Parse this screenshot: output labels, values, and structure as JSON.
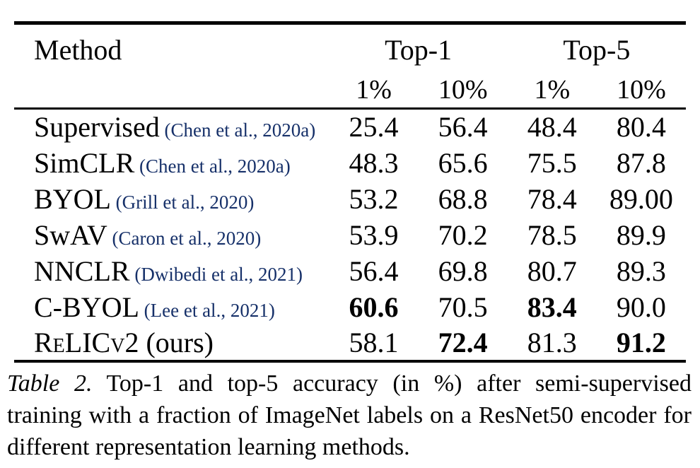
{
  "colors": {
    "text": "#000000",
    "citation_link": "#163069",
    "background": "#ffffff"
  },
  "table": {
    "method_header": "Method",
    "groups": [
      "Top-1",
      "Top-5"
    ],
    "subheaders": [
      "1%",
      "10%",
      "1%",
      "10%"
    ],
    "rows": [
      {
        "method": "Supervised",
        "citation": "(Chen et al., 2020a)",
        "note": "",
        "smallcaps": false,
        "values": [
          {
            "text": "25.4",
            "bold": false
          },
          {
            "text": "56.4",
            "bold": false
          },
          {
            "text": "48.4",
            "bold": false
          },
          {
            "text": "80.4",
            "bold": false
          }
        ]
      },
      {
        "method": "SimCLR",
        "citation": "(Chen et al., 2020a)",
        "note": "",
        "smallcaps": false,
        "values": [
          {
            "text": "48.3",
            "bold": false
          },
          {
            "text": "65.6",
            "bold": false
          },
          {
            "text": "75.5",
            "bold": false
          },
          {
            "text": "87.8",
            "bold": false
          }
        ]
      },
      {
        "method": "BYOL",
        "citation": "(Grill et al., 2020)",
        "note": "",
        "smallcaps": false,
        "values": [
          {
            "text": "53.2",
            "bold": false
          },
          {
            "text": "68.8",
            "bold": false
          },
          {
            "text": "78.4",
            "bold": false
          },
          {
            "text": "89.00",
            "bold": false
          }
        ]
      },
      {
        "method": "SwAV",
        "citation": "(Caron et al., 2020)",
        "note": "",
        "smallcaps": false,
        "values": [
          {
            "text": "53.9",
            "bold": false
          },
          {
            "text": "70.2",
            "bold": false
          },
          {
            "text": "78.5",
            "bold": false
          },
          {
            "text": "89.9",
            "bold": false
          }
        ]
      },
      {
        "method": "NNCLR",
        "citation": "(Dwibedi et al., 2021)",
        "note": "",
        "smallcaps": false,
        "values": [
          {
            "text": "56.4",
            "bold": false
          },
          {
            "text": "69.8",
            "bold": false
          },
          {
            "text": "80.7",
            "bold": false
          },
          {
            "text": "89.3",
            "bold": false
          }
        ]
      },
      {
        "method": "C-BYOL",
        "citation": "(Lee et al., 2021)",
        "note": "",
        "smallcaps": false,
        "values": [
          {
            "text": "60.6",
            "bold": true
          },
          {
            "text": "70.5",
            "bold": false
          },
          {
            "text": "83.4",
            "bold": true
          },
          {
            "text": "90.0",
            "bold": false
          }
        ]
      },
      {
        "method": "ReLICv2",
        "citation": "",
        "note": "(ours)",
        "smallcaps": true,
        "values": [
          {
            "text": "58.1",
            "bold": false
          },
          {
            "text": "72.4",
            "bold": true
          },
          {
            "text": "81.3",
            "bold": false
          },
          {
            "text": "91.2",
            "bold": true
          }
        ]
      }
    ]
  },
  "caption": {
    "label": "Table 2.",
    "text": "Top-1 and top-5 accuracy (in %) after semi-supervised training with a fraction of ImageNet labels on a ResNet50 encoder for different representation learning methods."
  }
}
